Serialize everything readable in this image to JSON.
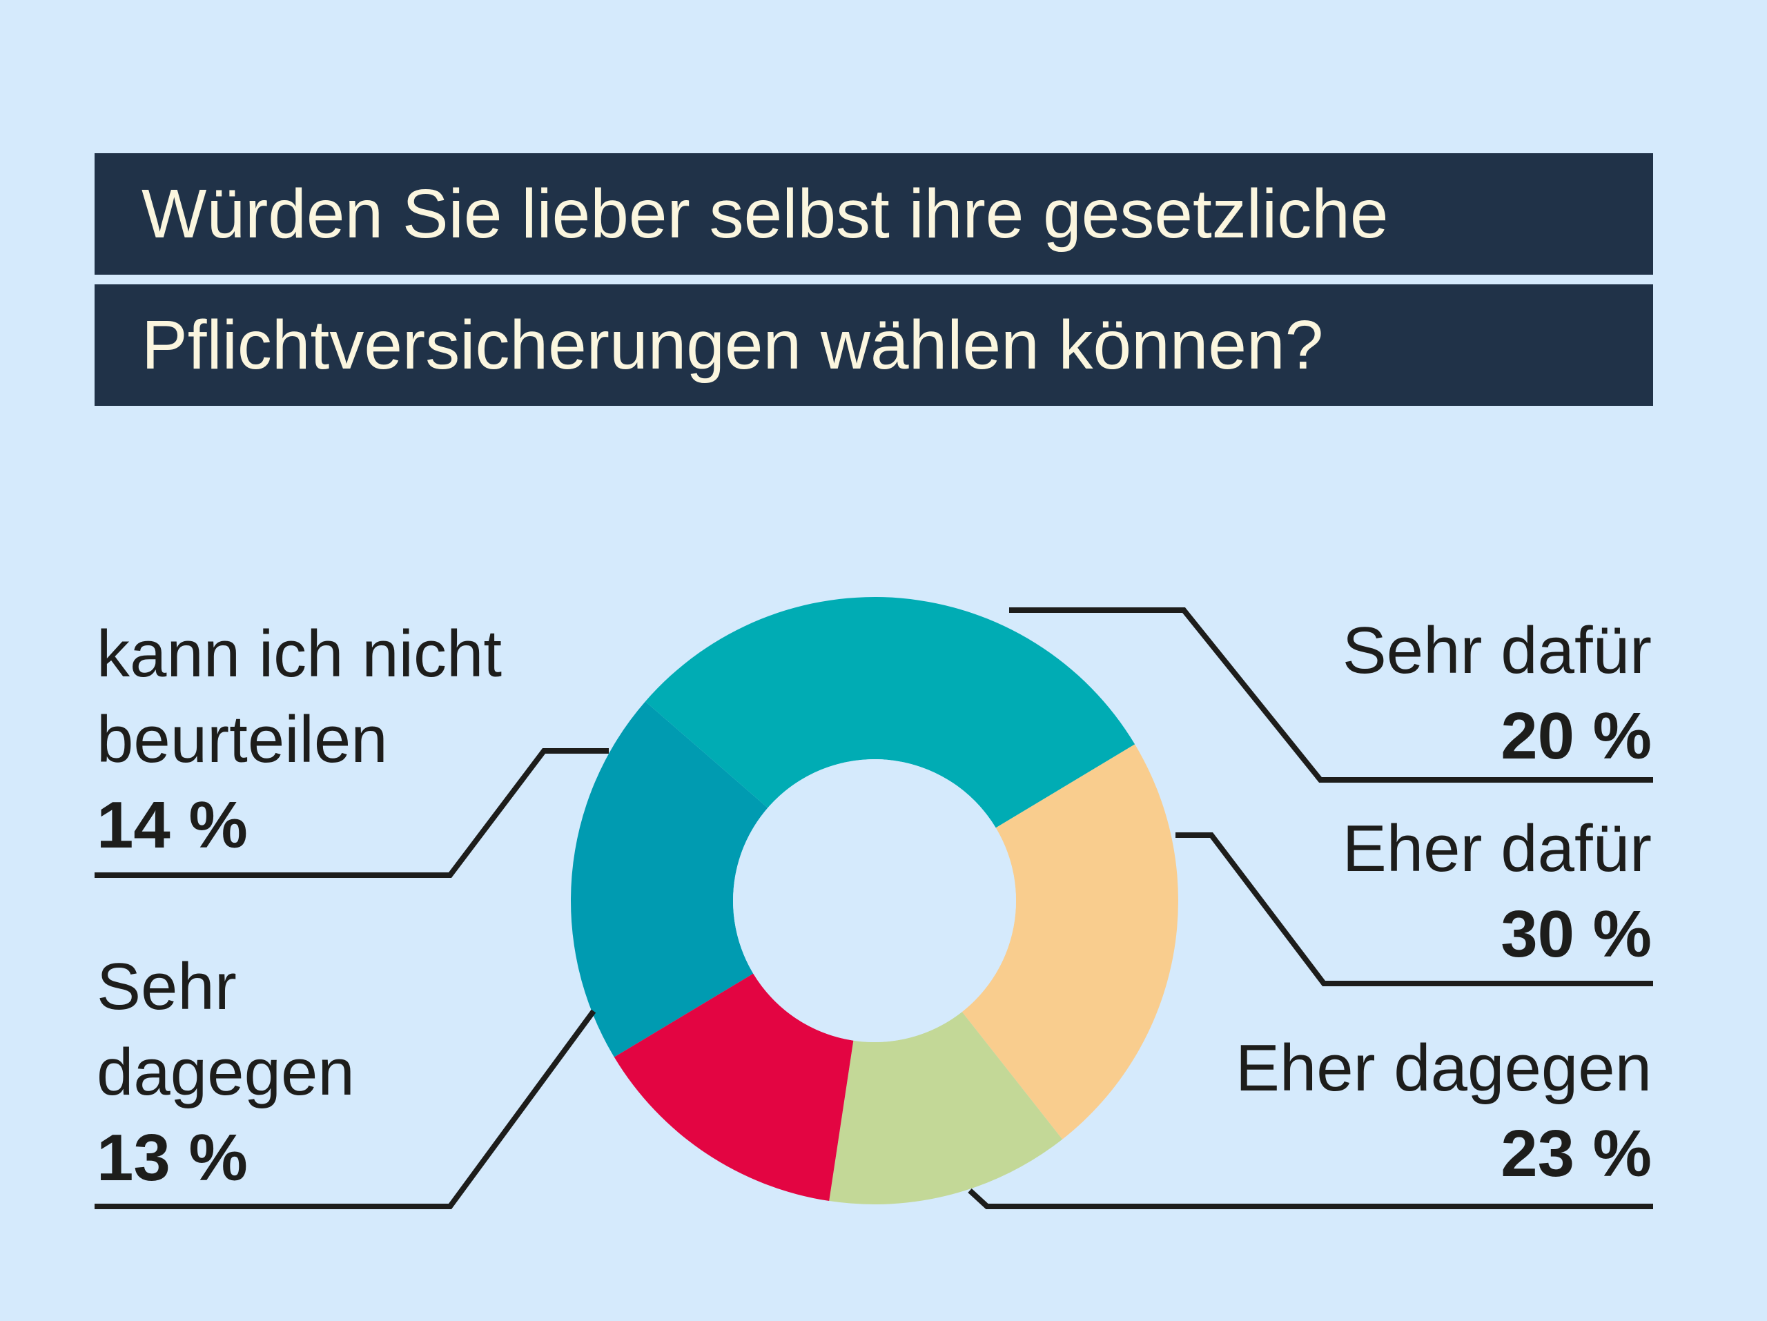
{
  "chart_data": {
    "type": "pie",
    "variant": "donut",
    "title": "Würden Sie lieber selbst ihre gesetzliche Pflichtversicherungen wählen können?",
    "title_lines": [
      "Würden Sie lieber selbst ihre gesetzliche",
      "Pflichtversicherungen wählen können?"
    ],
    "unit": "%",
    "slices": [
      {
        "label_lines": [
          "Sehr dafür"
        ],
        "value": 20,
        "value_label": "20 %",
        "color": "#009bb1"
      },
      {
        "label_lines": [
          "Eher dafür"
        ],
        "value": 30,
        "value_label": "30 %",
        "color": "#00acb4"
      },
      {
        "label_lines": [
          "Eher dagegen"
        ],
        "value": 23,
        "value_label": "23 %",
        "color": "#f9cd8e"
      },
      {
        "label_lines": [
          "Sehr",
          "dagegen"
        ],
        "value": 13,
        "value_label": "13 %",
        "color": "#c3d897"
      },
      {
        "label_lines": [
          "kann ich nicht",
          "beurteilen"
        ],
        "value": 14,
        "value_label": "14 %",
        "color": "#e30542"
      }
    ]
  },
  "colors": {
    "background": "#d5eafc",
    "title_bar": "#203248",
    "title_text": "#fbf6df",
    "leader_line": "#1d1d1b",
    "hole": "#d5eafc"
  }
}
